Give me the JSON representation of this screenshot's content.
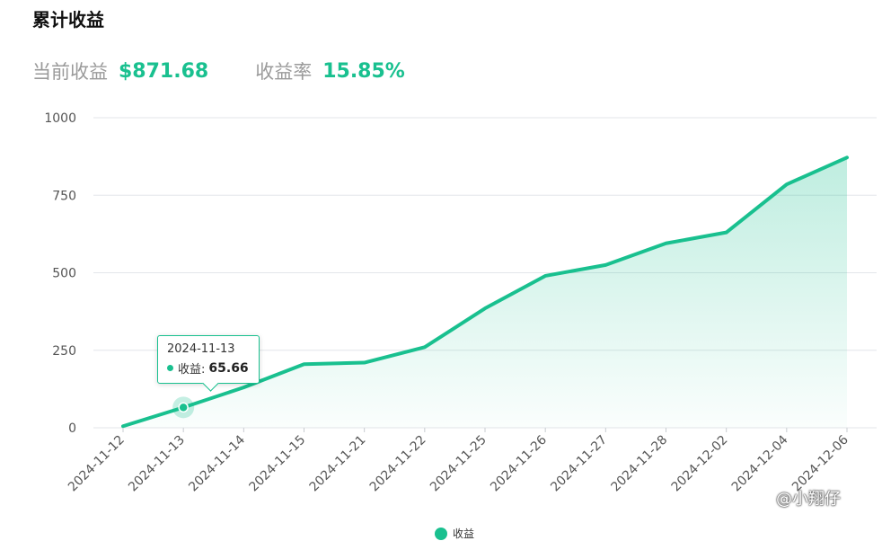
{
  "header": {
    "title": "累计收益",
    "current_label": "当前收益",
    "current_value": "$871.68",
    "rate_label": "收益率",
    "rate_value": "15.85%"
  },
  "chart_data": {
    "type": "area",
    "categories": [
      "2024-11-12",
      "2024-11-13",
      "2024-11-14",
      "2024-11-15",
      "2024-11-21",
      "2024-11-22",
      "2024-11-25",
      "2024-11-26",
      "2024-11-27",
      "2024-11-28",
      "2024-12-02",
      "2024-12-04",
      "2024-12-06"
    ],
    "series": [
      {
        "name": "收益",
        "values": [
          5,
          65.66,
          130,
          205,
          210,
          260,
          385,
          490,
          525,
          595,
          630,
          785,
          871.68
        ]
      }
    ],
    "yticks": [
      0,
      250,
      500,
      750,
      1000
    ],
    "ylim": [
      0,
      1000
    ],
    "grid": true,
    "legend": "bottom",
    "color": "#19c08f",
    "highlight_index": 1
  },
  "tooltip": {
    "date": "2024-11-13",
    "label": "收益:",
    "value": "65.66"
  },
  "watermark": "@小翔仔"
}
